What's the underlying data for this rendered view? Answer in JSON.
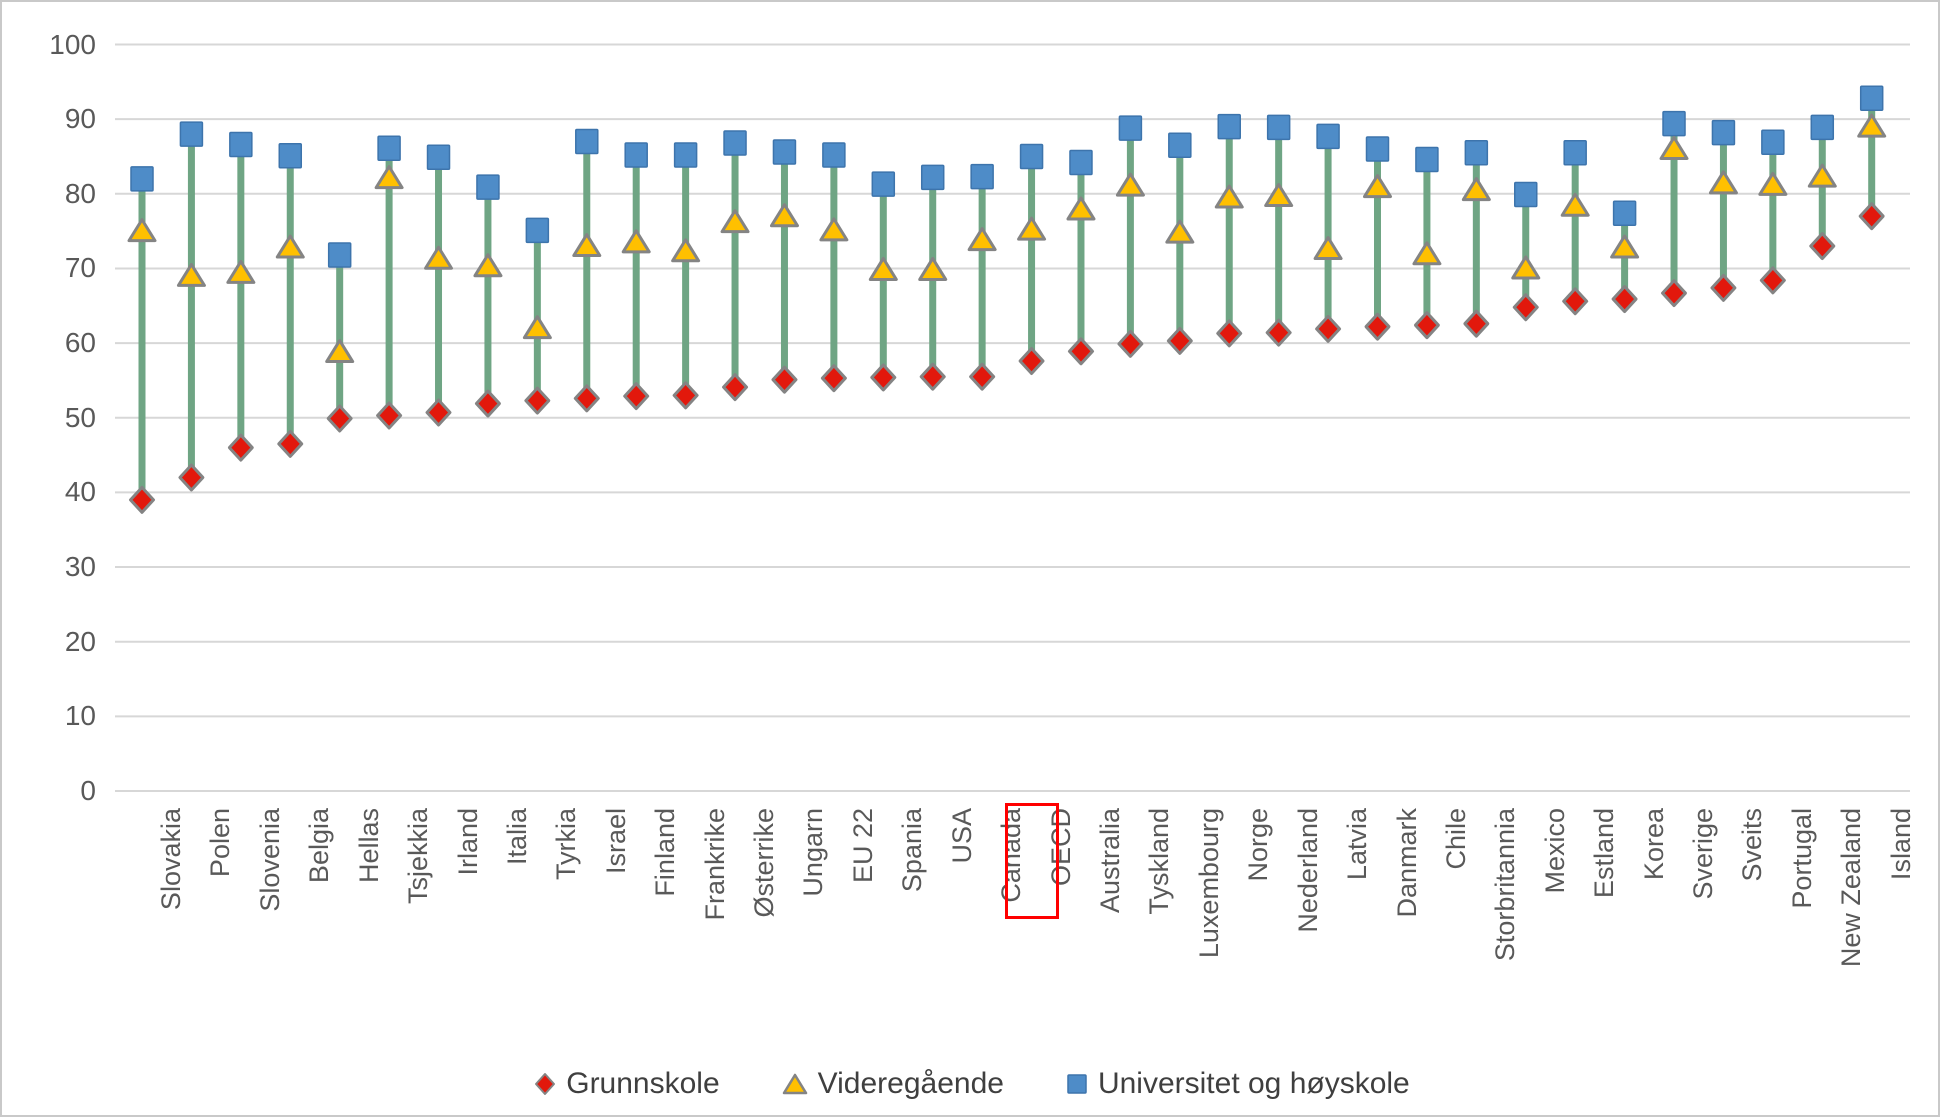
{
  "page": {
    "background": "#ffffff",
    "frame_border_color": "#c9c9c9"
  },
  "y_axis": {
    "tick_labels": [
      "100",
      "90",
      "80",
      "70",
      "60",
      "50",
      "40",
      "30",
      "20",
      "10",
      "0"
    ],
    "text_color": "#595959"
  },
  "chart_data": {
    "type": "scatter",
    "subtype": "high-low-marker-dotplot",
    "title": "",
    "xlabel": "",
    "ylabel": "",
    "ylim": [
      0,
      100
    ],
    "ytick_step": 10,
    "grid": "horizontal",
    "legend_position": "bottom",
    "highlighted_category": "OECD",
    "highlight_box_color": "#ff0000",
    "connector_color": "#6fa584",
    "gridline_color": "#d7d7d7",
    "axis_text_color": "#595959",
    "categories": [
      "Slovakia",
      "Polen",
      "Slovenia",
      "Belgia",
      "Hellas",
      "Tsjekkia",
      "Irland",
      "Italia",
      "Tyrkia",
      "Israel",
      "Finland",
      "Frankrike",
      "Østerrike",
      "Ungarn",
      "EU 22",
      "Spania",
      "USA",
      "Canada",
      "OECD",
      "Australia",
      "Tyskland",
      "Luxembourg",
      "Norge",
      "Nederland",
      "Latvia",
      "Danmark",
      "Chile",
      "Storbritannia",
      "Mexico",
      "Estland",
      "Korea",
      "Sverige",
      "Sveits",
      "Portugal",
      "New Zealand",
      "Island"
    ],
    "series": [
      {
        "name": "Grunnskole",
        "marker": "diamond",
        "color": "#e2180c",
        "border_color": "#848484",
        "values": [
          39,
          42,
          46,
          46.5,
          49.9,
          50.3,
          50.7,
          51.9,
          52.3,
          52.6,
          52.9,
          53,
          54.1,
          55.1,
          55.3,
          55.4,
          55.5,
          55.5,
          57.6,
          58.9,
          59.9,
          60.3,
          61.3,
          61.4,
          61.9,
          62.2,
          62.4,
          62.6,
          64.8,
          65.6,
          65.9,
          66.7,
          67.4,
          68.4,
          73,
          77
        ]
      },
      {
        "name": "Videregående",
        "marker": "triangle",
        "color": "#ffc000",
        "border_color": "#848484",
        "values": [
          75,
          69,
          69.4,
          72.8,
          58.8,
          82.1,
          71.3,
          70.3,
          62,
          73,
          73.5,
          72.3,
          76.2,
          77,
          75.1,
          69.8,
          69.8,
          73.8,
          75.2,
          77.9,
          81.1,
          74.8,
          79.5,
          79.7,
          72.6,
          80.9,
          71.9,
          80.5,
          70,
          78.4,
          72.8,
          86,
          81.4,
          81.2,
          82.3,
          89
        ]
      },
      {
        "name": "Universitet og høyskole",
        "marker": "square",
        "color": "#4e8cc8",
        "border_color": "#3d74ac",
        "values": [
          82,
          88,
          86.6,
          85.1,
          71.8,
          86.1,
          84.9,
          80.9,
          75.1,
          87,
          85.2,
          85.2,
          86.8,
          85.6,
          85.2,
          81.3,
          82.2,
          82.3,
          85,
          84.2,
          88.8,
          86.5,
          89,
          88.9,
          87.7,
          86,
          84.6,
          85.5,
          79.9,
          85.5,
          77.4,
          89.4,
          88.2,
          86.9,
          88.9,
          92.8
        ]
      }
    ]
  }
}
